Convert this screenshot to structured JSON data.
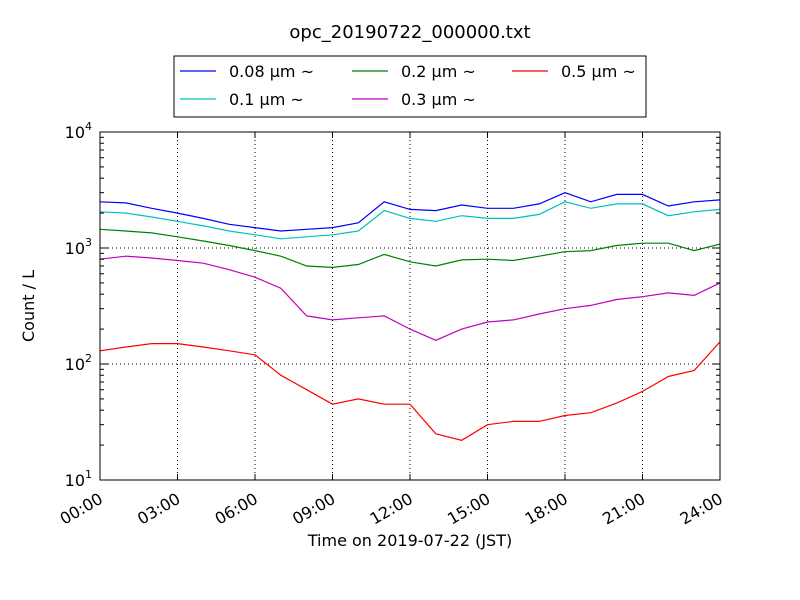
{
  "chart_data": {
    "type": "line",
    "title": "opc_20190722_000000.txt",
    "xlabel": "Time on 2019-07-22 (JST)",
    "ylabel": "Count / L",
    "yscale": "log",
    "ylim": [
      10,
      10000
    ],
    "xlim_hours": [
      0,
      24
    ],
    "grid": true,
    "legend_placement": "top-center-outside",
    "x_tick_labels": [
      "00:00",
      "03:00",
      "06:00",
      "09:00",
      "12:00",
      "15:00",
      "18:00",
      "21:00",
      "24:00"
    ],
    "y_tick_labels": [
      {
        "base": "10",
        "exp": "1"
      },
      {
        "base": "10",
        "exp": "2"
      },
      {
        "base": "10",
        "exp": "3"
      },
      {
        "base": "10",
        "exp": "4"
      }
    ],
    "x_hours": [
      0,
      1,
      2,
      3,
      4,
      5,
      6,
      7,
      8,
      9,
      10,
      11,
      12,
      13,
      14,
      15,
      16,
      17,
      18,
      19,
      20,
      21,
      22,
      23,
      24
    ],
    "series": [
      {
        "name": "0.08 μm ~",
        "color": "#0000ff",
        "values": [
          2500,
          2450,
          2200,
          2000,
          1800,
          1600,
          1500,
          1400,
          1450,
          1500,
          1650,
          2500,
          2150,
          2100,
          2350,
          2200,
          2200,
          2400,
          3000,
          2500,
          2900,
          2900,
          2300,
          2500,
          2600
        ]
      },
      {
        "name": "0.1 μm ~",
        "color": "#00bfbf",
        "values": [
          2050,
          2000,
          1850,
          1700,
          1550,
          1400,
          1300,
          1200,
          1250,
          1300,
          1400,
          2100,
          1800,
          1700,
          1900,
          1800,
          1800,
          1950,
          2500,
          2200,
          2400,
          2400,
          1900,
          2050,
          2150
        ]
      },
      {
        "name": "0.2 μm ~",
        "color": "#008000",
        "values": [
          1450,
          1400,
          1350,
          1250,
          1150,
          1050,
          950,
          850,
          700,
          680,
          720,
          880,
          760,
          700,
          790,
          800,
          780,
          850,
          930,
          950,
          1050,
          1100,
          1100,
          950,
          1080
        ]
      },
      {
        "name": "0.3 μm ~",
        "color": "#bf00bf",
        "values": [
          800,
          850,
          820,
          780,
          740,
          650,
          560,
          450,
          260,
          240,
          250,
          260,
          200,
          160,
          200,
          230,
          240,
          270,
          300,
          320,
          360,
          380,
          410,
          390,
          500
        ]
      },
      {
        "name": "0.5 μm ~",
        "color": "#ff0000",
        "values": [
          130,
          140,
          150,
          150,
          140,
          130,
          120,
          80,
          60,
          45,
          50,
          45,
          45,
          25,
          22,
          30,
          32,
          32,
          36,
          38,
          46,
          58,
          78,
          88,
          155
        ]
      }
    ]
  }
}
